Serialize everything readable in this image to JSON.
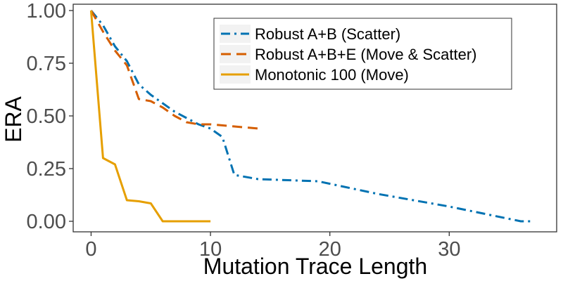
{
  "chart_data": {
    "type": "line",
    "title": "",
    "xlabel": "Mutation Trace Length",
    "ylabel": "ERA",
    "xlim": [
      -1.5,
      39
    ],
    "ylim": [
      -0.05,
      1.03
    ],
    "xticks": [
      0,
      10,
      20,
      30
    ],
    "xtick_labels": [
      "0",
      "10",
      "20",
      "30"
    ],
    "yticks": [
      0,
      0.25,
      0.5,
      0.75,
      1.0
    ],
    "ytick_labels": [
      "0.00",
      "0.25",
      "0.50",
      "0.75",
      "1.00"
    ],
    "grid": false,
    "legend_position": "top-right",
    "series": [
      {
        "name": "Robust A+B (Scatter)",
        "color": "#0072B2",
        "dash": "dashdot",
        "x": [
          0,
          1,
          2,
          3,
          4,
          5,
          6,
          7,
          8,
          9,
          10,
          11,
          12,
          14,
          19,
          24,
          30,
          36,
          37
        ],
        "y": [
          1.0,
          0.93,
          0.83,
          0.76,
          0.65,
          0.6,
          0.56,
          0.52,
          0.49,
          0.46,
          0.44,
          0.4,
          0.22,
          0.2,
          0.19,
          0.13,
          0.07,
          0.0,
          0.0
        ]
      },
      {
        "name": "Robust A+B+E (Move & Scatter)",
        "color": "#D55E00",
        "dash": "dashed",
        "x": [
          0,
          1,
          2,
          3,
          4,
          5,
          6,
          7,
          8,
          9,
          10,
          12,
          14
        ],
        "y": [
          1.0,
          0.9,
          0.81,
          0.74,
          0.58,
          0.57,
          0.54,
          0.5,
          0.47,
          0.46,
          0.46,
          0.45,
          0.44
        ]
      },
      {
        "name": "Monotonic 100 (Move)",
        "color": "#E69F00",
        "dash": "solid",
        "x": [
          0,
          1,
          2,
          3,
          4,
          5,
          6,
          7,
          8,
          9,
          10
        ],
        "y": [
          1.0,
          0.3,
          0.27,
          0.1,
          0.095,
          0.085,
          0.0,
          0.0,
          0.0,
          0.0,
          0.0
        ]
      }
    ]
  }
}
